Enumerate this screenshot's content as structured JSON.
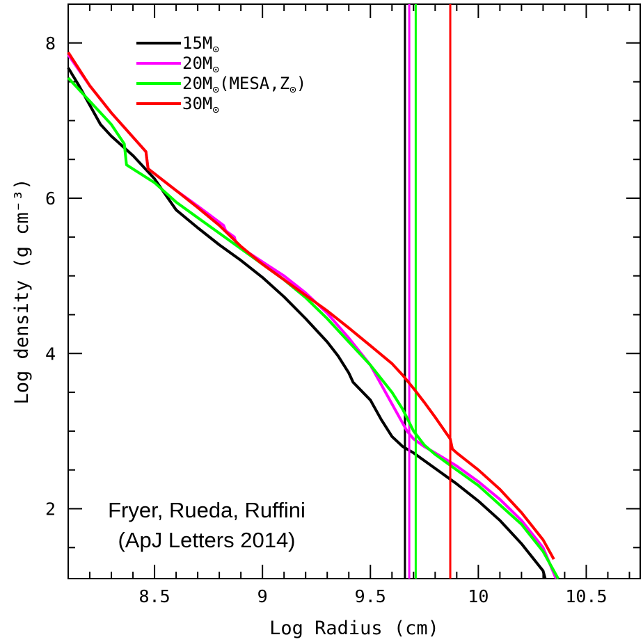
{
  "chart_data": {
    "type": "line",
    "xlabel": "Log Radius (cm)",
    "ylabel": "Log density (g cm⁻³)",
    "xlim": [
      8.1,
      10.75
    ],
    "ylim": [
      1.1,
      8.5
    ],
    "x_ticks": [
      "8.5",
      "9",
      "9.5",
      "10",
      "10.5"
    ],
    "y_ticks": [
      "2",
      "4",
      "6",
      "8"
    ],
    "grid": false,
    "legend_position": "top-left",
    "sun_symbol": "⊙",
    "annotation_lines": [
      "Fryer, Rueda, Ruffini",
      "(ApJ Letters 2014)"
    ],
    "series": [
      {
        "name": "15M⊙",
        "color": "#000000",
        "vertical_line_x": 9.66,
        "x": [
          8.1,
          8.15,
          8.2,
          8.25,
          8.3,
          8.4,
          8.5,
          8.55,
          8.6,
          8.7,
          8.8,
          8.9,
          9.0,
          9.1,
          9.2,
          9.3,
          9.35,
          9.4,
          9.42,
          9.5,
          9.55,
          9.6,
          9.65,
          9.7,
          9.8,
          9.9,
          10.0,
          10.1,
          10.2,
          10.3,
          10.31
        ],
        "y": [
          7.68,
          7.45,
          7.2,
          6.95,
          6.8,
          6.55,
          6.25,
          6.05,
          5.85,
          5.62,
          5.4,
          5.2,
          4.98,
          4.73,
          4.45,
          4.15,
          3.97,
          3.75,
          3.63,
          3.4,
          3.15,
          2.93,
          2.8,
          2.72,
          2.52,
          2.32,
          2.1,
          1.85,
          1.55,
          1.2,
          1.1
        ]
      },
      {
        "name": "20M⊙",
        "color": "#ff00ff",
        "vertical_line_x": 9.68,
        "x": [
          8.1,
          8.2,
          8.3,
          8.46,
          8.47,
          8.6,
          8.7,
          8.82,
          8.83,
          8.87,
          8.88,
          9.0,
          9.1,
          9.2,
          9.3,
          9.4,
          9.5,
          9.55,
          9.6,
          9.65,
          9.67,
          9.7,
          9.75,
          9.8,
          9.9,
          10.0,
          10.1,
          10.2,
          10.3,
          10.36
        ],
        "y": [
          7.85,
          7.45,
          7.1,
          6.6,
          6.38,
          6.1,
          5.9,
          5.65,
          5.58,
          5.5,
          5.4,
          5.18,
          5.0,
          4.78,
          4.52,
          4.2,
          3.85,
          3.6,
          3.35,
          3.1,
          3.0,
          2.9,
          2.8,
          2.72,
          2.55,
          2.35,
          2.12,
          1.85,
          1.5,
          1.1
        ]
      },
      {
        "name": "20M⊙(MESA,Z⊙)",
        "color": "#00ff00",
        "vertical_line_x": 9.71,
        "x": [
          8.1,
          8.2,
          8.3,
          8.36,
          8.37,
          8.5,
          8.6,
          8.7,
          8.8,
          8.9,
          9.0,
          9.1,
          9.2,
          9.3,
          9.4,
          9.5,
          9.6,
          9.65,
          9.7,
          9.75,
          9.8,
          9.9,
          10.0,
          10.1,
          10.2,
          10.3,
          10.37
        ],
        "y": [
          7.55,
          7.25,
          6.95,
          6.7,
          6.43,
          6.2,
          5.95,
          5.75,
          5.55,
          5.35,
          5.15,
          4.95,
          4.72,
          4.45,
          4.15,
          3.85,
          3.5,
          3.28,
          3.0,
          2.82,
          2.7,
          2.5,
          2.3,
          2.05,
          1.8,
          1.45,
          1.1
        ]
      },
      {
        "name": "30M⊙",
        "color": "#ff0000",
        "vertical_line_x": 9.87,
        "x": [
          8.1,
          8.2,
          8.3,
          8.46,
          8.47,
          8.6,
          8.7,
          8.8,
          8.9,
          9.0,
          9.1,
          9.2,
          9.3,
          9.4,
          9.5,
          9.6,
          9.65,
          9.7,
          9.75,
          9.8,
          9.85,
          9.87,
          9.88,
          9.9,
          10.0,
          10.1,
          10.2,
          10.3,
          10.35
        ],
        "y": [
          7.88,
          7.45,
          7.1,
          6.6,
          6.38,
          6.1,
          5.88,
          5.65,
          5.38,
          5.15,
          4.95,
          4.75,
          4.55,
          4.33,
          4.1,
          3.87,
          3.72,
          3.55,
          3.37,
          3.18,
          2.98,
          2.9,
          2.77,
          2.72,
          2.5,
          2.25,
          1.95,
          1.6,
          1.35
        ]
      }
    ]
  }
}
